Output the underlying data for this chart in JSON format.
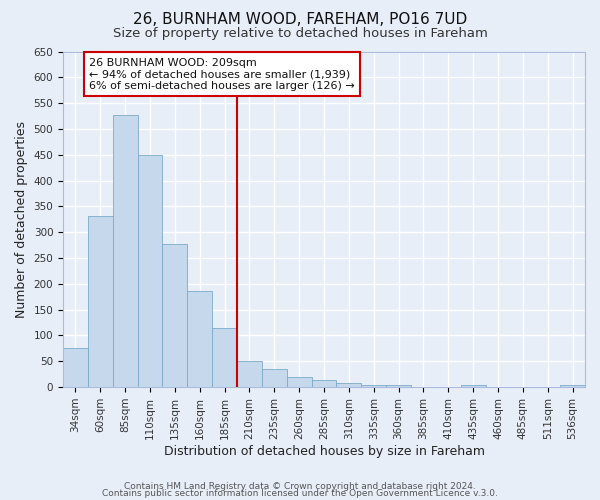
{
  "title": "26, BURNHAM WOOD, FAREHAM, PO16 7UD",
  "subtitle": "Size of property relative to detached houses in Fareham",
  "xlabel": "Distribution of detached houses by size in Fareham",
  "ylabel": "Number of detached properties",
  "bar_labels": [
    "34sqm",
    "60sqm",
    "85sqm",
    "110sqm",
    "135sqm",
    "160sqm",
    "185sqm",
    "210sqm",
    "235sqm",
    "260sqm",
    "285sqm",
    "310sqm",
    "335sqm",
    "360sqm",
    "385sqm",
    "410sqm",
    "435sqm",
    "460sqm",
    "485sqm",
    "511sqm",
    "536sqm"
  ],
  "bar_values": [
    75,
    332,
    527,
    450,
    277,
    187,
    115,
    51,
    36,
    19,
    13,
    8,
    4,
    4,
    1,
    0,
    5,
    0,
    1,
    0,
    5
  ],
  "bar_color": "#c6d9ec",
  "bar_edge_color": "#7aaac8",
  "ylim": [
    0,
    650
  ],
  "yticks": [
    0,
    50,
    100,
    150,
    200,
    250,
    300,
    350,
    400,
    450,
    500,
    550,
    600,
    650
  ],
  "vline_color": "#cc0000",
  "annotation_title": "26 BURNHAM WOOD: 209sqm",
  "annotation_line1": "← 94% of detached houses are smaller (1,939)",
  "annotation_line2": "6% of semi-detached houses are larger (126) →",
  "annotation_box_color": "#ffffff",
  "annotation_box_edge": "#cc0000",
  "footer1": "Contains HM Land Registry data © Crown copyright and database right 2024.",
  "footer2": "Contains public sector information licensed under the Open Government Licence v.3.0.",
  "background_color": "#e8eef8",
  "grid_color": "#ffffff",
  "title_fontsize": 11,
  "subtitle_fontsize": 9.5,
  "axis_label_fontsize": 9,
  "tick_fontsize": 7.5,
  "footer_fontsize": 6.5
}
